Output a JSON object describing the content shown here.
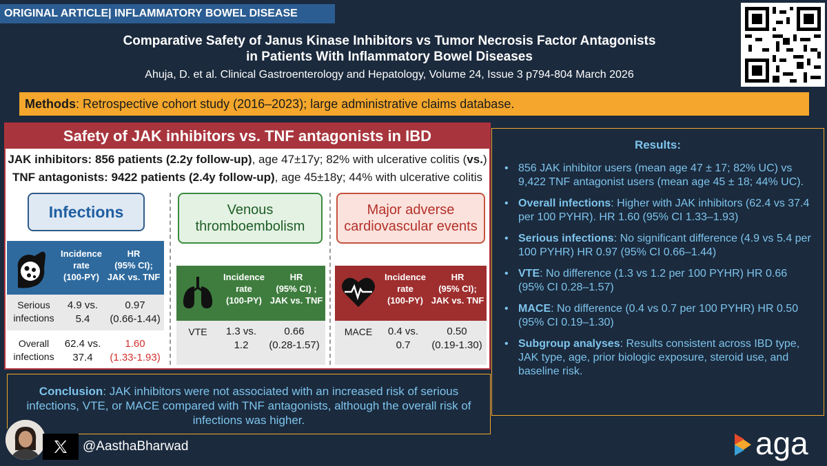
{
  "header": {
    "tag": "ORIGINAL ARTICLE| INFLAMMATORY BOWEL DISEASE",
    "title_line1": "Comparative Safety of Janus Kinase Inhibitors vs Tumor Necrosis Factor Antagonists",
    "title_line2": "in Patients With Inflammatory Bowel Diseases",
    "citation": "Ahuja, D. et al. Clinical Gastroenterology and Hepatology, Volume 24, Issue 3 p794-804 March 2026"
  },
  "methods": {
    "label": "Methods",
    "text": ": Retrospective cohort study (2016–2023); large administrative claims database."
  },
  "graphic": {
    "heading": "Safety of JAK inhibitors vs. TNF antagonists in IBD",
    "jak_bold": "JAK inhibitors: 856 patients (2.2y follow-up)",
    "jak_rest": ", age 47±17y; 82% with ulcerative colitis (",
    "jak_vs": "vs.",
    "jak_close": ")",
    "tnf_bold": "TNF antagonists: 9422 patients (2.4y follow-up)",
    "tnf_rest": ", age 45±18y; 44% with ulcerative colitis",
    "infections": {
      "label": "Infections",
      "col1_l1": "Incidence",
      "col1_l2": "rate",
      "col1_l3": "(100-PY)",
      "col2_l1": "HR",
      "col2_l2": "(95% CI);",
      "col2_l3": "JAK vs. TNF",
      "rows": [
        {
          "name_l1": "Serious",
          "name_l2": "infections",
          "rate_l1": "4.9 vs.",
          "rate_l2": "5.4",
          "hr_l1": "0.97",
          "hr_l2": "(0.66-1.44)"
        },
        {
          "name_l1": "Overall",
          "name_l2": "infections",
          "rate_l1": "62.4 vs.",
          "rate_l2": "37.4",
          "hr_l1": "1.60",
          "hr_l2": "(1.33-1.93)"
        }
      ]
    },
    "vte": {
      "label_l1": "Venous",
      "label_l2": "thromboembolism",
      "col1_l1": "Incidence",
      "col1_l2": "rate",
      "col1_l3": "(100-PY)",
      "col2_l1": "HR",
      "col2_l2": "(95% CI) ;",
      "col2_l3": "JAK vs. TNF",
      "row": {
        "name": "VTE",
        "rate_l1": "1.3 vs.",
        "rate_l2": "1.2",
        "hr_l1": "0.66",
        "hr_l2": "(0.28-1.57)"
      }
    },
    "mace": {
      "label_l1": "Major adverse",
      "label_l2": "cardiovascular events",
      "col1_l1": "Incidence",
      "col1_l2": "rate",
      "col1_l3": "(100-PY)",
      "col2_l1": "HR",
      "col2_l2": "(95% CI);",
      "col2_l3": "JAK vs. TNF",
      "row": {
        "name": "MACE",
        "rate_l1": "0.4 vs.",
        "rate_l2": "0.7",
        "hr_l1": "0.50",
        "hr_l2": "(0.19-1.30)"
      }
    }
  },
  "results": {
    "title": "Results:",
    "items": [
      {
        "bold": "",
        "text": "856 JAK inhibitor users (mean age 47 ± 17; 82% UC) vs 9,422 TNF antagonist users (mean age 45 ± 18; 44% UC)."
      },
      {
        "bold": "Overall infections",
        "text": ": Higher with JAK inhibitors (62.4 vs 37.4 per 100 PYHR). HR 1.60 (95% CI 1.33–1.93)"
      },
      {
        "bold": "Serious infections",
        "text": ": No significant difference (4.9 vs 5.4 per 100 PYHR) HR 0.97 (95% CI 0.66–1.44)"
      },
      {
        "bold": "VTE",
        "text": ": No difference (1.3 vs 1.2 per 100 PYHR) HR 0.66 (95% CI 0.28–1.57)"
      },
      {
        "bold": "MACE",
        "text": ": No difference (0.4 vs 0.7 per 100 PYHR) HR 0.50 (95% CI 0.19–1.30)"
      },
      {
        "bold": "Subgroup analyses",
        "text": ": Results consistent across IBD type, JAK type, age, prior biologic exposure, steroid use, and baseline risk."
      }
    ]
  },
  "conclusion": {
    "label": "Conclusion",
    "text": ": JAK inhibitors were not associated with an increased risk of serious infections, VTE, or MACE compared with TNF antagonists, although the overall risk of infections was higher."
  },
  "footer": {
    "handle": "@AasthaBharwad",
    "logo_text": "aga"
  },
  "colors": {
    "background": "#1b2a3d",
    "accent": "#f4a72c",
    "results_text": "#7ec4ec",
    "tag_blue": "#2b5d92",
    "hr_highlight": "#d0312d"
  },
  "icons": [
    "qr-code-icon",
    "bacteria-icon",
    "lungs-icon",
    "heart-pulse-icon",
    "x-logo-icon",
    "aga-logo-icon"
  ]
}
